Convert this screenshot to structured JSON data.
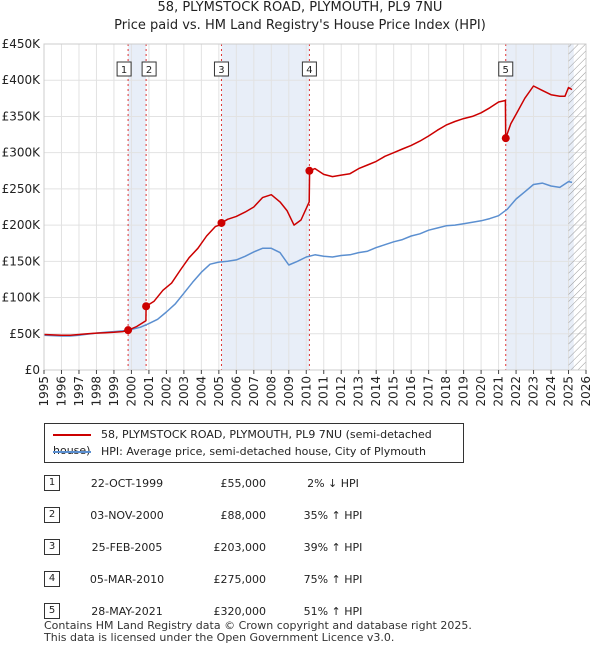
{
  "title_line1": "58, PLYMSTOCK ROAD, PLYMOUTH, PL9 7NU",
  "title_line2": "Price paid vs. HM Land Registry's House Price Index (HPI)",
  "chart_data": {
    "type": "line",
    "xlim": [
      1995,
      2026
    ],
    "ylim": [
      0,
      450000
    ],
    "y_ticks": [
      0,
      50000,
      100000,
      150000,
      200000,
      250000,
      300000,
      350000,
      400000,
      450000
    ],
    "y_tick_labels": [
      "£0",
      "£50K",
      "£100K",
      "£150K",
      "£200K",
      "£250K",
      "£300K",
      "£350K",
      "£400K",
      "£450K"
    ],
    "x_ticks": [
      1995,
      1996,
      1997,
      1998,
      1999,
      2000,
      2001,
      2002,
      2003,
      2004,
      2005,
      2006,
      2007,
      2008,
      2009,
      2010,
      2011,
      2012,
      2013,
      2014,
      2015,
      2016,
      2017,
      2018,
      2019,
      2020,
      2021,
      2022,
      2023,
      2024,
      2025,
      2026
    ],
    "shaded_spans": [
      [
        1999.81,
        2000.84
      ],
      [
        2005.15,
        2010.18
      ],
      [
        2021.41,
        2025.3
      ]
    ],
    "hatch_from": 2025.0,
    "series": [
      {
        "name": "58, PLYMSTOCK ROAD, PLYMOUTH, PL9 7NU (semi-detached house)",
        "color": "#cc0000",
        "x": [
          1995.0,
          1995.5,
          1996.0,
          1996.5,
          1997.0,
          1997.5,
          1998.0,
          1998.5,
          1999.0,
          1999.5,
          1999.8,
          1999.82,
          2000.3,
          2000.83,
          2000.84,
          2001.3,
          2001.8,
          2002.3,
          2002.8,
          2003.3,
          2003.8,
          2004.3,
          2004.8,
          2005.14,
          2005.16,
          2005.5,
          2006.0,
          2006.5,
          2007.0,
          2007.5,
          2008.0,
          2008.5,
          2008.9,
          2009.3,
          2009.7,
          2010.17,
          2010.19,
          2010.5,
          2011.0,
          2011.5,
          2012.0,
          2012.5,
          2013.0,
          2013.5,
          2014.0,
          2014.5,
          2015.0,
          2015.5,
          2016.0,
          2016.5,
          2017.0,
          2017.5,
          2018.0,
          2018.5,
          2019.0,
          2019.5,
          2020.0,
          2020.5,
          2021.0,
          2021.39,
          2021.41,
          2021.7,
          2022.0,
          2022.5,
          2023.0,
          2023.5,
          2024.0,
          2024.5,
          2024.8,
          2025.0,
          2025.2
        ],
        "values": [
          49000,
          48500,
          48000,
          48000,
          49000,
          50000,
          51000,
          51500,
          52000,
          53000,
          54500,
          55000,
          60000,
          68000,
          88000,
          95000,
          110000,
          120000,
          138000,
          155000,
          168000,
          185000,
          198000,
          201000,
          203000,
          208000,
          212000,
          218000,
          225000,
          238000,
          242000,
          232000,
          220000,
          200000,
          207000,
          232000,
          275000,
          278000,
          270000,
          267000,
          269000,
          271000,
          278000,
          283000,
          288000,
          295000,
          300000,
          305000,
          310000,
          316000,
          323000,
          331000,
          338000,
          343000,
          347000,
          350000,
          355000,
          362000,
          370000,
          372000,
          320000,
          340000,
          353000,
          375000,
          392000,
          386000,
          380000,
          378000,
          378000,
          390000,
          387000
        ]
      },
      {
        "name": "HPI: Average price, semi-detached house, City of Plymouth",
        "color": "#5b8fd0",
        "x": [
          1995.0,
          1995.5,
          1996.0,
          1996.5,
          1997.0,
          1997.5,
          1998.0,
          1998.5,
          1999.0,
          1999.5,
          2000.0,
          2000.5,
          2001.0,
          2001.5,
          2002.0,
          2002.5,
          2003.0,
          2003.5,
          2004.0,
          2004.5,
          2005.0,
          2005.5,
          2006.0,
          2006.5,
          2007.0,
          2007.5,
          2008.0,
          2008.5,
          2009.0,
          2009.5,
          2010.0,
          2010.5,
          2011.0,
          2011.5,
          2012.0,
          2012.5,
          2013.0,
          2013.5,
          2014.0,
          2014.5,
          2015.0,
          2015.5,
          2016.0,
          2016.5,
          2017.0,
          2017.5,
          2018.0,
          2018.5,
          2019.0,
          2019.5,
          2020.0,
          2020.5,
          2021.0,
          2021.5,
          2022.0,
          2022.5,
          2023.0,
          2023.5,
          2024.0,
          2024.5,
          2025.0,
          2025.2
        ],
        "values": [
          48000,
          47500,
          47000,
          47000,
          48000,
          49500,
          51000,
          52000,
          53000,
          54000,
          56000,
          59000,
          64000,
          70000,
          80000,
          91000,
          106000,
          121000,
          135000,
          146000,
          149000,
          150000,
          152000,
          157000,
          163000,
          168000,
          168000,
          162000,
          145000,
          150000,
          156000,
          159000,
          157000,
          156000,
          158000,
          159000,
          162000,
          164000,
          169000,
          173000,
          177000,
          180000,
          185000,
          188000,
          193000,
          196000,
          199000,
          200000,
          202000,
          204000,
          206000,
          209000,
          213000,
          222000,
          236000,
          246000,
          256000,
          258000,
          254000,
          252000,
          260000,
          259000
        ]
      }
    ],
    "sales": [
      {
        "label": "1",
        "x": 1999.81,
        "price": 55000
      },
      {
        "label": "2",
        "x": 2000.84,
        "price": 88000
      },
      {
        "label": "3",
        "x": 2005.15,
        "price": 203000
      },
      {
        "label": "4",
        "x": 2010.18,
        "price": 275000
      },
      {
        "label": "5",
        "x": 2021.41,
        "price": 320000
      }
    ]
  },
  "legend": {
    "property": "58, PLYMSTOCK ROAD, PLYMOUTH, PL9 7NU (semi-detached house)",
    "hpi": "HPI: Average price, semi-detached house, City of Plymouth"
  },
  "transactions": [
    {
      "num": "1",
      "date": "22-OCT-1999",
      "price": "£55,000",
      "hpi": "2% ↓ HPI"
    },
    {
      "num": "2",
      "date": "03-NOV-2000",
      "price": "£88,000",
      "hpi": "35% ↑ HPI"
    },
    {
      "num": "3",
      "date": "25-FEB-2005",
      "price": "£203,000",
      "hpi": "39% ↑ HPI"
    },
    {
      "num": "4",
      "date": "05-MAR-2010",
      "price": "£275,000",
      "hpi": "75% ↑ HPI"
    },
    {
      "num": "5",
      "date": "28-MAY-2021",
      "price": "£320,000",
      "hpi": "51% ↑ HPI"
    }
  ],
  "footer": {
    "line1": "Contains HM Land Registry data © Crown copyright and database right 2025.",
    "line2": "This data is licensed under the Open Government Licence v3.0."
  }
}
